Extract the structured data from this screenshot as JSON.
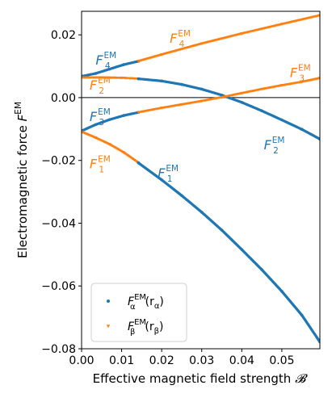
{
  "chart_data": {
    "type": "scatter",
    "title": "",
    "xlabel": {
      "main": "Effective magnetic field strength ",
      "symbol": "𝓑"
    },
    "ylabel": {
      "main": "Electromagnetic force ",
      "symbol": "F",
      "sup": "EM"
    },
    "xlim": [
      0.0,
      0.0595
    ],
    "ylim": [
      -0.08,
      0.0275
    ],
    "xticks": [
      "0.00",
      "0.01",
      "0.02",
      "0.03",
      "0.04",
      "0.05"
    ],
    "xtick_values": [
      0.0,
      0.01,
      0.02,
      0.03,
      0.04,
      0.05
    ],
    "yticks": [
      "−0.08",
      "−0.06",
      "−0.04",
      "−0.02",
      "0.00",
      "0.02"
    ],
    "ytick_values": [
      -0.08,
      -0.06,
      -0.04,
      -0.02,
      0.0,
      0.02
    ],
    "zero_line": true,
    "grid": false,
    "legend_position": "lower-left",
    "colors": {
      "alpha": "#1f77b4",
      "beta": "#ff7f0e"
    },
    "legend": [
      {
        "symbol": "F",
        "sup": "EM",
        "sub": "α",
        "arg": "(r",
        "argsub": "α",
        "close": ")",
        "color": "#1f77b4",
        "marker": "dot"
      },
      {
        "symbol": "F",
        "sup": "EM",
        "sub": "β",
        "arg": "(r",
        "argsub": "β",
        "close": ")",
        "color": "#ff7f0e",
        "marker": "triangle"
      }
    ],
    "curve_labels": [
      {
        "sym": "F",
        "sub": "4",
        "sup": "EM",
        "color": "#1f77b4",
        "at": [
          0.0035,
          0.0105
        ]
      },
      {
        "sym": "F",
        "sub": "2",
        "sup": "EM",
        "color": "#ff7f0e",
        "at": [
          0.002,
          0.0025
        ]
      },
      {
        "sym": "F",
        "sub": "3",
        "sup": "EM",
        "color": "#1f77b4",
        "at": [
          0.002,
          -0.0075
        ]
      },
      {
        "sym": "F",
        "sub": "1",
        "sup": "EM",
        "color": "#ff7f0e",
        "at": [
          0.002,
          -0.0225
        ]
      },
      {
        "sym": "F",
        "sub": "4",
        "sup": "EM",
        "color": "#ff7f0e",
        "at": [
          0.022,
          0.0175
        ]
      },
      {
        "sym": "F",
        "sub": "3",
        "sup": "EM",
        "color": "#ff7f0e",
        "at": [
          0.052,
          0.0065
        ]
      },
      {
        "sym": "F",
        "sub": "2",
        "sup": "EM",
        "color": "#1f77b4",
        "at": [
          0.0455,
          -0.0165
        ]
      },
      {
        "sym": "F",
        "sub": "1",
        "sup": "EM",
        "color": "#1f77b4",
        "at": [
          0.019,
          -0.0255
        ]
      }
    ],
    "series": [
      {
        "curve": "4",
        "segments": [
          {
            "color": "#1f77b4",
            "marker": "dot",
            "x": [
              0.0,
              0.0035,
              0.007,
              0.0105,
              0.0142
            ],
            "y": [
              0.0068,
              0.0077,
              0.0091,
              0.0105,
              0.0116
            ]
          },
          {
            "color": "#ff7f0e",
            "marker": "triangle",
            "x": [
              0.0142,
              0.02,
              0.03,
              0.04,
              0.05,
              0.0595
            ],
            "y": [
              0.0116,
              0.0137,
              0.0172,
              0.0204,
              0.0234,
              0.0262
            ]
          }
        ]
      },
      {
        "curve": "2",
        "segments": [
          {
            "color": "#ff7f0e",
            "marker": "triangle",
            "x": [
              0.0,
              0.005,
              0.01,
              0.0142
            ],
            "y": [
              0.0064,
              0.0064,
              0.0063,
              0.006
            ]
          },
          {
            "color": "#1f77b4",
            "marker": "dot",
            "x": [
              0.0142,
              0.02,
              0.025,
              0.03,
              0.035,
              0.04,
              0.045,
              0.05,
              0.055,
              0.0595
            ],
            "y": [
              0.006,
              0.0053,
              0.0042,
              0.0027,
              0.0008,
              -0.0015,
              -0.0042,
              -0.0071,
              -0.0101,
              -0.0132
            ]
          }
        ]
      },
      {
        "curve": "3",
        "segments": [
          {
            "color": "#1f77b4",
            "marker": "dot",
            "x": [
              0.0,
              0.0035,
              0.007,
              0.0105,
              0.0142
            ],
            "y": [
              -0.0106,
              -0.0086,
              -0.007,
              -0.0057,
              -0.0047
            ]
          },
          {
            "color": "#ff7f0e",
            "marker": "triangle",
            "x": [
              0.0142,
              0.02,
              0.025,
              0.03,
              0.035,
              0.04,
              0.045,
              0.05,
              0.055,
              0.0595
            ],
            "y": [
              -0.0047,
              -0.0033,
              -0.0022,
              -0.0011,
              0.0001,
              0.0014,
              0.0027,
              0.0039,
              0.005,
              0.0062
            ]
          }
        ]
      },
      {
        "curve": "1",
        "segments": [
          {
            "color": "#ff7f0e",
            "marker": "triangle",
            "x": [
              0.0,
              0.0035,
              0.007,
              0.0105,
              0.0142
            ],
            "y": [
              -0.0109,
              -0.0128,
              -0.0149,
              -0.0175,
              -0.0208
            ]
          },
          {
            "color": "#1f77b4",
            "marker": "dot",
            "x": [
              0.0142,
              0.02,
              0.025,
              0.03,
              0.035,
              0.04,
              0.045,
              0.05,
              0.055,
              0.0595
            ],
            "y": [
              -0.0208,
              -0.0262,
              -0.0312,
              -0.0365,
              -0.0422,
              -0.0484,
              -0.0548,
              -0.0617,
              -0.0693,
              -0.0778
            ]
          }
        ]
      }
    ]
  }
}
